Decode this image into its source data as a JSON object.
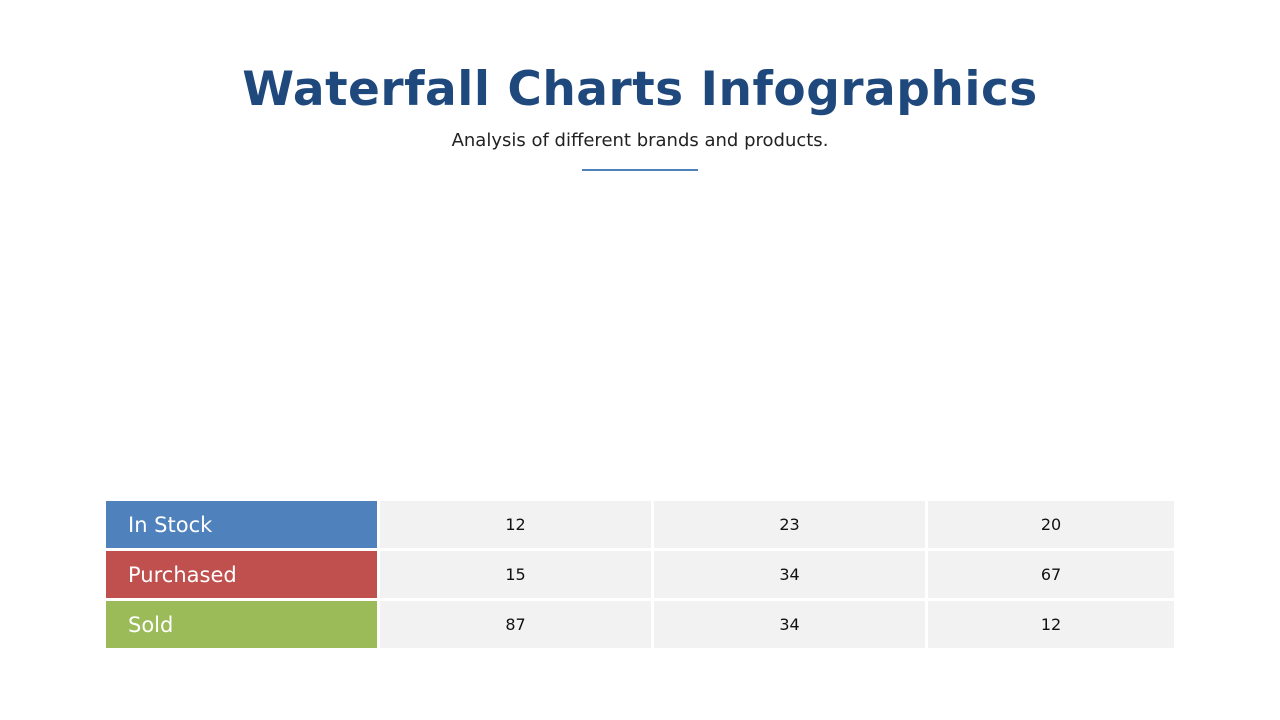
{
  "header": {
    "title": "Waterfall Charts Infographics",
    "subtitle": "Analysis of different brands and products."
  },
  "chart_data": {
    "type": "table",
    "rows": [
      {
        "label": "In Stock",
        "color": "#4f81bd",
        "values": [
          "12",
          "23",
          "20"
        ]
      },
      {
        "label": "Purchased",
        "color": "#c0504d",
        "values": [
          "15",
          "34",
          "67"
        ]
      },
      {
        "label": "Sold",
        "color": "#9bbb59",
        "values": [
          "87",
          "34",
          "12"
        ]
      }
    ]
  }
}
